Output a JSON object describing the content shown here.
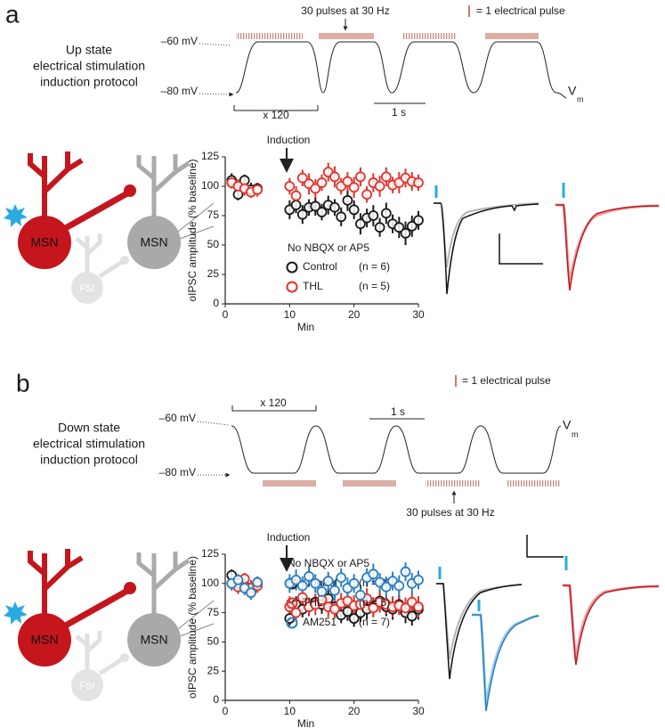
{
  "chart_data": [
    {
      "type": "scatter",
      "xlabel": "Min",
      "ylabel": "oIPSC amplitude (% baseline)",
      "induction": "Induction",
      "note": "No NBQX or AP5",
      "xlim": [
        0,
        30
      ],
      "xticks": [
        0,
        10,
        20,
        30
      ],
      "ylim": [
        0,
        125
      ],
      "yticks": [
        0,
        25,
        50,
        75,
        100,
        125
      ],
      "x": [
        1,
        2,
        3,
        4,
        5,
        10,
        11,
        12,
        13,
        14,
        15,
        16,
        17,
        18,
        19,
        20,
        21,
        22,
        23,
        24,
        25,
        26,
        27,
        28,
        29,
        30
      ],
      "series": [
        {
          "name": "Control",
          "n": "(n = 6)",
          "color": "#1a1a1a",
          "values": [
            105,
            93,
            105,
            97,
            98,
            80,
            84,
            76,
            82,
            83,
            78,
            84,
            82,
            74,
            88,
            80,
            68,
            73,
            75,
            65,
            77,
            68,
            65,
            60,
            66,
            71
          ],
          "errors": [
            6,
            5,
            5,
            6,
            5,
            8,
            7,
            8,
            7,
            8,
            7,
            8,
            7,
            8,
            9,
            8,
            9,
            8,
            9,
            8,
            9,
            8,
            9,
            10,
            9,
            8
          ]
        },
        {
          "name": "THL",
          "n": "(n = 5)",
          "color": "#e2332c",
          "values": [
            103,
            100,
            98,
            95,
            97,
            100,
            92,
            107,
            102,
            98,
            103,
            112,
            108,
            100,
            104,
            99,
            108,
            93,
            103,
            100,
            108,
            101,
            103,
            107,
            104,
            103
          ],
          "errors": [
            5,
            6,
            6,
            5,
            6,
            7,
            8,
            7,
            9,
            8,
            7,
            8,
            9,
            7,
            8,
            9,
            8,
            7,
            8,
            9,
            8,
            7,
            9,
            8,
            8,
            7
          ]
        }
      ]
    },
    {
      "type": "scatter",
      "xlabel": "Min",
      "ylabel": "oIPSC amplitude (% baseline)",
      "induction": "Induction",
      "note": "No NBQX or AP5",
      "xlim": [
        0,
        30
      ],
      "xticks": [
        0,
        10,
        20,
        30
      ],
      "ylim": [
        0,
        125
      ],
      "yticks": [
        0,
        25,
        50,
        75,
        100,
        125
      ],
      "x": [
        1,
        2,
        3,
        4,
        5,
        10,
        11,
        12,
        13,
        14,
        15,
        16,
        17,
        18,
        19,
        20,
        21,
        22,
        23,
        24,
        25,
        26,
        27,
        28,
        29,
        30
      ],
      "series": [
        {
          "name": "Control",
          "n": "(n = 8)",
          "color": "#1a1a1a",
          "values": [
            107,
            100,
            98,
            93,
            100,
            70,
            82,
            78,
            80,
            84,
            82,
            87,
            80,
            73,
            76,
            70,
            75,
            78,
            80,
            85,
            80,
            78,
            82,
            75,
            72,
            78
          ],
          "errors": [
            5,
            6,
            6,
            5,
            6,
            6,
            7,
            7,
            8,
            7,
            8,
            9,
            8,
            7,
            8,
            7,
            8,
            9,
            8,
            9,
            8,
            9,
            8,
            9,
            8,
            9
          ]
        },
        {
          "name": "THL",
          "n": "(n = 5)",
          "color": "#e2332c",
          "values": [
            100,
            97,
            104,
            96,
            98,
            80,
            75,
            88,
            80,
            82,
            86,
            80,
            78,
            83,
            85,
            81,
            82,
            87,
            79,
            84,
            82,
            80,
            81,
            79,
            84,
            80
          ],
          "errors": [
            6,
            6,
            5,
            7,
            6,
            9,
            8,
            9,
            8,
            9,
            8,
            9,
            8,
            9,
            8,
            9,
            8,
            9,
            8,
            9,
            8,
            9,
            8,
            9,
            8,
            9
          ]
        },
        {
          "name": "AM251",
          "n": "(n = 7)",
          "color": "#2a7fc1",
          "values": [
            100,
            103,
            96,
            92,
            101,
            100,
            103,
            98,
            106,
            100,
            93,
            102,
            94,
            105,
            96,
            100,
            90,
            105,
            108,
            101,
            97,
            102,
            98,
            110,
            100,
            103
          ],
          "errors": [
            6,
            5,
            6,
            6,
            5,
            8,
            9,
            8,
            9,
            8,
            9,
            8,
            9,
            8,
            9,
            8,
            9,
            8,
            9,
            8,
            9,
            8,
            9,
            8,
            9,
            8
          ]
        }
      ]
    }
  ],
  "panel_a": {
    "label": "a",
    "protocol_title": [
      "Up state",
      "electrical stimulation",
      "induction protocol"
    ],
    "v_high": "–60 mV",
    "v_low": "–80 mV",
    "pulses": "30 pulses at 30 Hz",
    "pulse_legend": "= 1 electrical pulse",
    "repeat": "x 120",
    "time_scale": "1 s",
    "vm": "V",
    "vm_sub": "m",
    "cells": [
      "MSN",
      "MSN",
      "FSI"
    ]
  },
  "panel_b": {
    "label": "b",
    "protocol_title": [
      "Down state",
      "electrical stimulation",
      "induction protocol"
    ],
    "v_high": "–60 mV",
    "v_low": "–80 mV",
    "pulses": "30 pulses at 30 Hz",
    "pulse_legend": "= 1 electrical pulse",
    "repeat": "x 120",
    "time_scale": "1 s",
    "vm": "V",
    "vm_sub": "m",
    "cells": [
      "MSN",
      "MSN",
      "FSI"
    ]
  }
}
